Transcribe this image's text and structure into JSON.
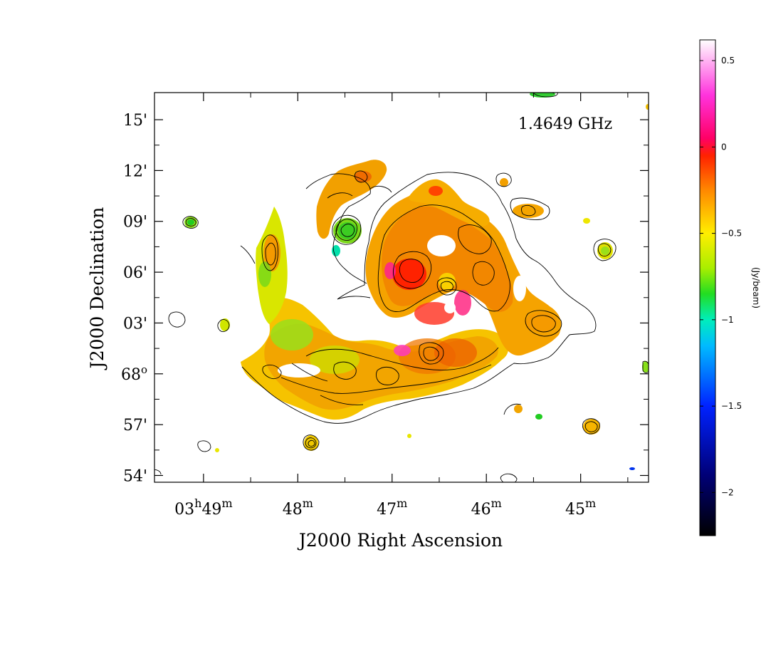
{
  "chart_data": {
    "type": "heatmap",
    "title": "",
    "annotation": "1.4649 GHz",
    "xlabel": "J2000 Right Ascension",
    "ylabel": "J2000 Declination",
    "x_ticks": [
      {
        "ra_min": 49,
        "h": "03",
        "m": "49",
        "label_prefix": "03",
        "label_h": "h",
        "label_num": "49",
        "label_m": "m"
      },
      {
        "ra_min": 48,
        "label_num": "48",
        "label_m": "m"
      },
      {
        "ra_min": 47,
        "label_num": "47",
        "label_m": "m"
      },
      {
        "ra_min": 46,
        "label_num": "46",
        "label_m": "m"
      },
      {
        "ra_min": 45,
        "label_num": "45",
        "label_m": "m"
      }
    ],
    "x_range_ra_min": [
      49.52,
      44.28
    ],
    "y_ticks": [
      {
        "dec_arcmin": 15,
        "label": "15'"
      },
      {
        "dec_arcmin": 12,
        "label": "12'"
      },
      {
        "dec_arcmin": 9,
        "label": "09'"
      },
      {
        "dec_arcmin": 6,
        "label": "06'"
      },
      {
        "dec_arcmin": 3,
        "label": "03'"
      },
      {
        "dec_arcmin": 0,
        "label_num": "68",
        "label_deg": "o"
      },
      {
        "dec_arcmin": -3,
        "label": "57'"
      },
      {
        "dec_arcmin": -6,
        "label": "54'"
      }
    ],
    "y_range_dec_arcmin": [
      -6.4,
      16.6
    ],
    "colorbar": {
      "label": "(Jy/beam)",
      "range": [
        -2.25,
        0.62
      ],
      "ticks": [
        {
          "value": 0.5,
          "label": "0.5"
        },
        {
          "value": 0,
          "label": "0"
        },
        {
          "value": -0.5,
          "label": "−0.5"
        },
        {
          "value": -1,
          "label": "−1"
        },
        {
          "value": -1.5,
          "label": "−1.5"
        },
        {
          "value": -2,
          "label": "−2"
        }
      ],
      "stops": [
        {
          "value": 0.62,
          "color": "#ffffff"
        },
        {
          "value": 0.3,
          "color": "#ff33dd"
        },
        {
          "value": 0.05,
          "color": "#ff0066"
        },
        {
          "value": -0.05,
          "color": "#ff2200"
        },
        {
          "value": -0.25,
          "color": "#ff8800"
        },
        {
          "value": -0.5,
          "color": "#ffee00"
        },
        {
          "value": -0.7,
          "color": "#aaee00"
        },
        {
          "value": -0.85,
          "color": "#22dd22"
        },
        {
          "value": -1.0,
          "color": "#00eebb"
        },
        {
          "value": -1.15,
          "color": "#00bbff"
        },
        {
          "value": -1.5,
          "color": "#0022ff"
        },
        {
          "value": -1.9,
          "color": "#000077"
        },
        {
          "value": -2.25,
          "color": "#000000"
        }
      ]
    }
  }
}
